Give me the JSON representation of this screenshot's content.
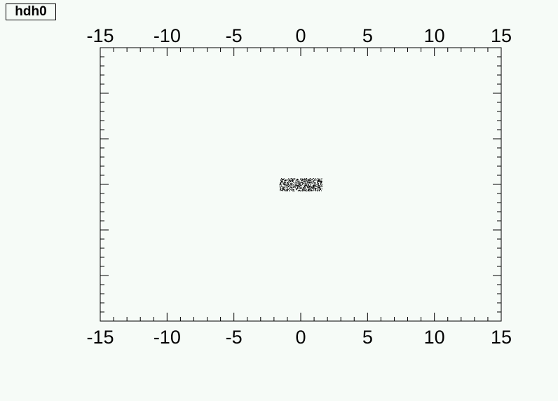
{
  "title_box": {
    "text": "hdh0"
  },
  "chart_data": {
    "type": "scatter",
    "title": "hdh0",
    "xlim": [
      -15,
      15
    ],
    "ylim": [
      -15,
      15
    ],
    "x_ticks": [
      -15,
      -10,
      -5,
      0,
      5,
      10,
      15
    ],
    "x_tick_labels": [
      "-15",
      "-10",
      "-5",
      "0",
      "5",
      "10",
      "15"
    ],
    "top_axis_tick_labels": [
      "-15",
      "-10",
      "-5",
      "0",
      "5",
      "10",
      "15"
    ],
    "y_tick_labels_shown": false,
    "grid": false,
    "legend": "none",
    "points_description": "dense cloud of random points, approx x in [-1.6, 1.6], y in [-0.7, 0.7]",
    "cloud": {
      "x_range": [
        -1.6,
        1.6
      ],
      "y_range": [
        -0.7,
        0.7
      ],
      "count": 700
    },
    "colors": {
      "background": "#f6fbf7",
      "points": "#000000"
    }
  }
}
